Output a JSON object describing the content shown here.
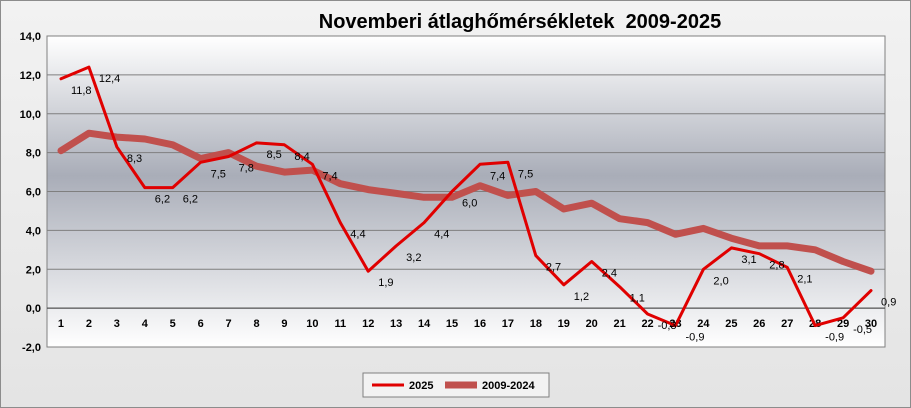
{
  "chart_data": {
    "type": "line",
    "title": "Novemberi átlaghőmérsékletek  2009-2025",
    "xlabel": "",
    "ylabel": "",
    "ylim": [
      -2.0,
      14.0
    ],
    "ytick_step": 2.0,
    "grid": true,
    "legend_position": "bottom",
    "x": [
      1,
      2,
      3,
      4,
      5,
      6,
      7,
      8,
      9,
      10,
      11,
      12,
      13,
      14,
      15,
      16,
      17,
      18,
      19,
      20,
      21,
      22,
      23,
      24,
      25,
      26,
      27,
      28,
      29,
      30
    ],
    "series": [
      {
        "name": "2025",
        "color": "#e00000",
        "values": [
          11.8,
          12.4,
          8.3,
          6.2,
          6.2,
          7.5,
          7.8,
          8.5,
          8.4,
          7.4,
          4.4,
          1.9,
          3.2,
          4.4,
          6.0,
          7.4,
          7.5,
          2.7,
          1.2,
          2.4,
          1.1,
          -0.3,
          -0.9,
          2.0,
          3.1,
          2.8,
          2.1,
          -0.9,
          -0.5,
          0.9
        ],
        "labels": [
          "11,8",
          "12,4",
          "8,3",
          "6,2",
          "6,2",
          "7,5",
          "7,8",
          "8,5",
          "8,4",
          "7,4",
          "4,4",
          "1,9",
          "3,2",
          "4,4",
          "6,0",
          "7,4",
          "7,5",
          "2,7",
          "1,2",
          "2,4",
          "1,1",
          "-0,3",
          "-0,9",
          "2,0",
          "3,1",
          "2,8",
          "2,1",
          "-0,9",
          "-0,5",
          "0,9"
        ]
      },
      {
        "name": "2009-2024",
        "color": "#c0504d",
        "values": [
          8.1,
          9.0,
          8.8,
          8.7,
          8.4,
          7.7,
          8.0,
          7.3,
          7.0,
          7.1,
          6.4,
          6.1,
          5.9,
          5.7,
          5.7,
          6.3,
          5.8,
          6.0,
          5.1,
          5.4,
          4.6,
          4.4,
          3.8,
          4.1,
          3.6,
          3.2,
          3.2,
          3.0,
          2.4,
          1.9
        ]
      }
    ]
  }
}
